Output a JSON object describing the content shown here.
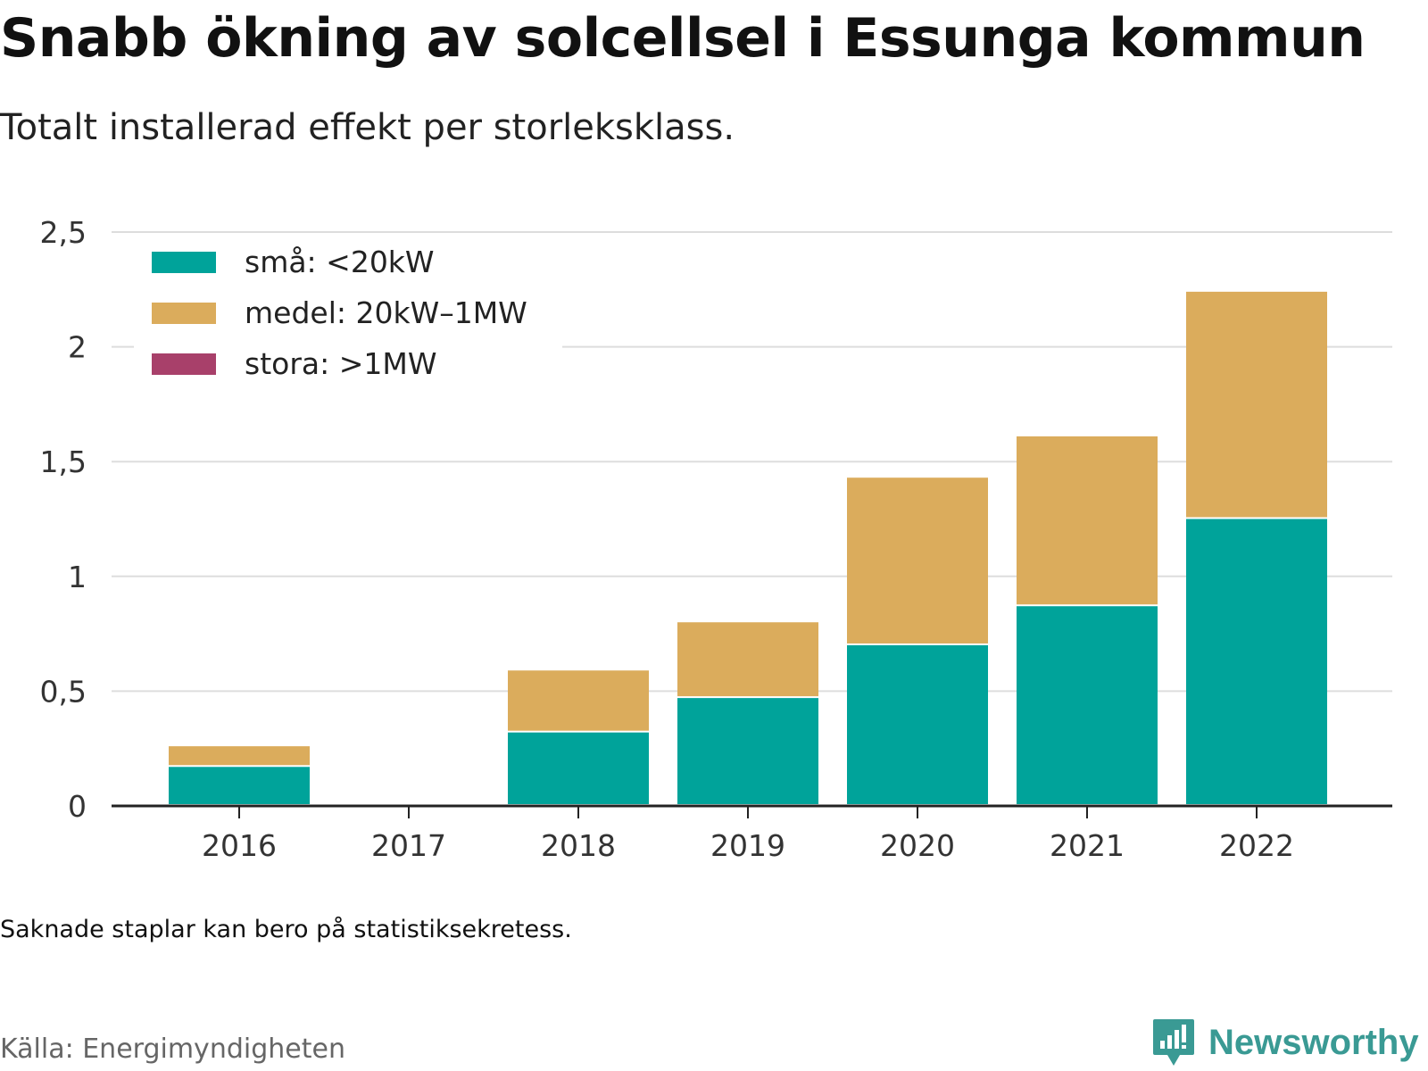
{
  "title": "Snabb ökning av solcellsel i Essunga kommun",
  "subtitle": "Totalt installerad effekt per storleksklass.",
  "note": "Saknade staplar kan bero på statistiksekretess.",
  "source": "Källa: Energimyndigheten",
  "brand": {
    "name": "Newsworthy",
    "icon": "newsworthy-logo-icon",
    "color": "#3a9a94"
  },
  "chart_data": {
    "type": "bar",
    "stacked": true,
    "categories": [
      "2016",
      "2017",
      "2018",
      "2019",
      "2020",
      "2021",
      "2022"
    ],
    "series": [
      {
        "name": "små: <20kW",
        "color": "#00a39a",
        "values": [
          0.17,
          null,
          0.32,
          0.47,
          0.7,
          0.87,
          1.25
        ]
      },
      {
        "name": "medel: 20kW–1MW",
        "color": "#dbac5c",
        "values": [
          0.09,
          null,
          0.27,
          0.33,
          0.73,
          0.74,
          0.99
        ]
      },
      {
        "name": "stora: >1MW",
        "color": "#a8406a",
        "values": [
          0,
          null,
          0,
          0,
          0,
          0,
          0
        ]
      }
    ],
    "ylim": [
      0,
      2.5
    ],
    "yticks": [
      0,
      0.5,
      1,
      1.5,
      2,
      2.5
    ],
    "ytick_labels": [
      "0",
      "0,5",
      "1",
      "1,5",
      "2",
      "2,5"
    ],
    "xlabel": "",
    "ylabel": "",
    "grid": true,
    "legend_position": "top-left"
  }
}
